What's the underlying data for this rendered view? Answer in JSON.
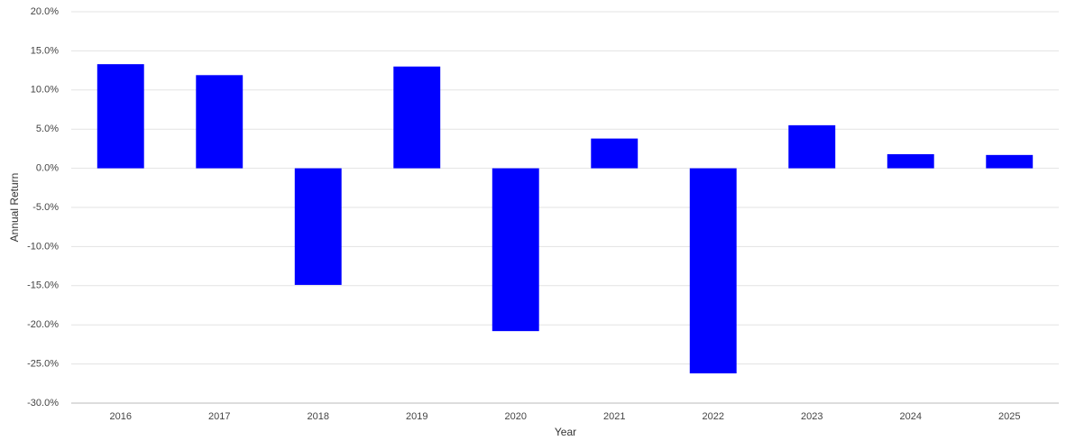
{
  "chart_data": {
    "type": "bar",
    "x_label": "Year",
    "y_label": "Annual Return",
    "categories": [
      "2016",
      "2017",
      "2018",
      "2019",
      "2020",
      "2021",
      "2022",
      "2023",
      "2024",
      "2025"
    ],
    "values": [
      13.3,
      11.9,
      -14.9,
      13.0,
      -20.8,
      3.8,
      -26.2,
      5.5,
      1.8,
      1.7
    ],
    "color": "#0000ff",
    "ylim": [
      -30,
      20
    ],
    "yticks": [
      {
        "value": -30,
        "label": "-30.0%"
      },
      {
        "value": -25,
        "label": "-25.0%"
      },
      {
        "value": -20,
        "label": "-20.0%"
      },
      {
        "value": -15,
        "label": "-15.0%"
      },
      {
        "value": -10,
        "label": "-10.0%"
      },
      {
        "value": -5,
        "label": "-5.0%"
      },
      {
        "value": 0,
        "label": "0.0%"
      },
      {
        "value": 5,
        "label": "5.0%"
      },
      {
        "value": 10,
        "label": "10.0%"
      },
      {
        "value": 15,
        "label": "15.0%"
      },
      {
        "value": 20,
        "label": "20.0%"
      }
    ],
    "grid": true
  }
}
